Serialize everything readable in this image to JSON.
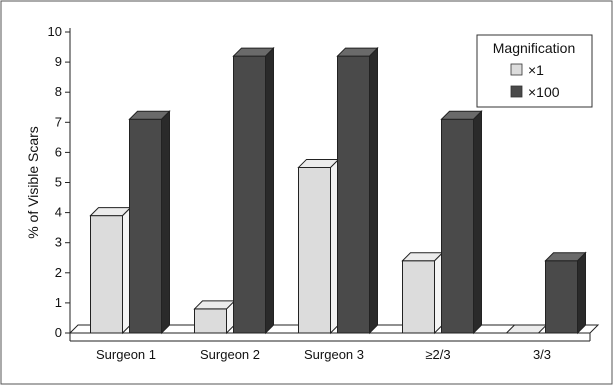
{
  "chart_data": {
    "type": "bar",
    "title": "",
    "xlabel": "",
    "ylabel": "% of Visible Scars",
    "ylim": [
      0,
      10
    ],
    "yticks": [
      0,
      1,
      2,
      3,
      4,
      5,
      6,
      7,
      8,
      9,
      10
    ],
    "categories": [
      "Surgeon 1",
      "Surgeon 2",
      "Surgeon 3",
      "≥2/3",
      "3/3"
    ],
    "series": [
      {
        "name": "×1",
        "color": "#dcdcdc",
        "side_color": "#f4f4f4",
        "top_color": "#ececec",
        "values": [
          3.9,
          0.8,
          5.5,
          2.4,
          0.0
        ]
      },
      {
        "name": "×100",
        "color": "#4a4a4a",
        "side_color": "#2a2a2a",
        "top_color": "#6a6a6a",
        "values": [
          7.1,
          9.2,
          9.2,
          7.1,
          2.4
        ]
      }
    ],
    "legend": {
      "title": "Magnification",
      "position": "top-right"
    },
    "grid": false,
    "style": "3d-bar"
  }
}
